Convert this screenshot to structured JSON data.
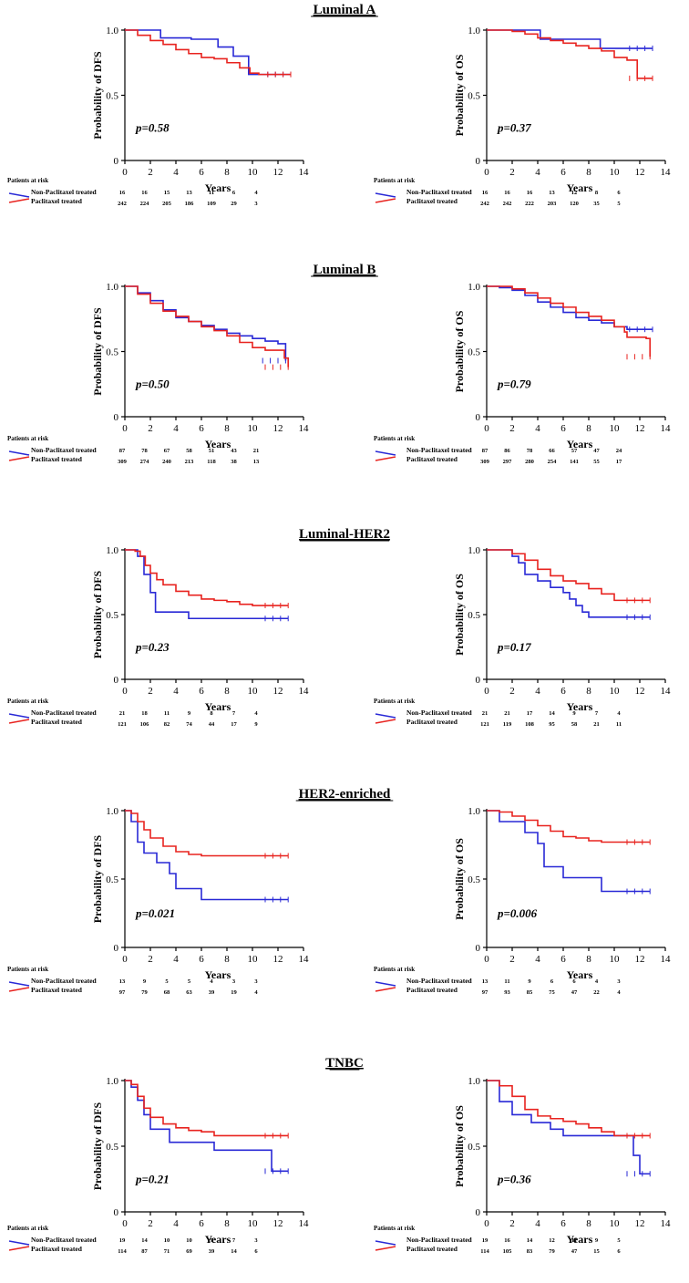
{
  "colors": {
    "non_paclitaxel": "#2929d6",
    "paclitaxel": "#e8231f"
  },
  "legend": {
    "non_paclitaxel": "Non-Paclitaxel treated",
    "paclitaxel": "Paclitaxel treated"
  },
  "risk_header": "Patients at risk",
  "x_label": "Years",
  "chart_data": [
    {
      "section": "Luminal A",
      "type": "line",
      "ylabel": "Probability of DFS",
      "pvalue": "p=0.58",
      "xlim": [
        0,
        14
      ],
      "ylim": [
        0,
        1
      ],
      "xticks": [
        "0",
        "2",
        "4",
        "6",
        "8",
        "10",
        "12",
        "14"
      ],
      "yticks": [
        "0",
        "0.5",
        "1.0"
      ],
      "series": [
        {
          "name": "Non-Paclitaxel treated",
          "x": [
            0,
            2.8,
            2.8,
            5.2,
            7.3,
            7.3,
            8.5,
            8.5,
            9.7,
            9.7,
            13
          ],
          "y": [
            1.0,
            1.0,
            0.94,
            0.93,
            0.93,
            0.87,
            0.87,
            0.8,
            0.8,
            0.66,
            0.66
          ]
        },
        {
          "name": "Paclitaxel treated",
          "x": [
            0,
            1,
            2,
            3,
            4,
            5,
            6,
            7,
            8,
            9,
            9.8,
            10.5,
            13
          ],
          "y": [
            1.0,
            0.96,
            0.92,
            0.89,
            0.85,
            0.82,
            0.79,
            0.78,
            0.75,
            0.71,
            0.67,
            0.66,
            0.66
          ]
        }
      ],
      "at_risk": {
        "non_paclitaxel": [
          "16",
          "16",
          "15",
          "13",
          "11",
          "6",
          "4"
        ],
        "paclitaxel": [
          "242",
          "224",
          "205",
          "186",
          "109",
          "29",
          "3"
        ]
      }
    },
    {
      "section": "Luminal A",
      "type": "line",
      "ylabel": "Probability of OS",
      "pvalue": "p=0.37",
      "xlim": [
        0,
        14
      ],
      "ylim": [
        0,
        1
      ],
      "xticks": [
        "0",
        "2",
        "4",
        "6",
        "8",
        "10",
        "12",
        "14"
      ],
      "yticks": [
        "0",
        "0.5",
        "1.0"
      ],
      "series": [
        {
          "name": "Non-Paclitaxel treated",
          "x": [
            0,
            4.2,
            4.2,
            8.9,
            8.9,
            13
          ],
          "y": [
            1.0,
            1.0,
            0.93,
            0.93,
            0.86,
            0.86
          ]
        },
        {
          "name": "Paclitaxel treated",
          "x": [
            0,
            2,
            3,
            4,
            5,
            6,
            7,
            8,
            9,
            10,
            11,
            11.8,
            11.8,
            13
          ],
          "y": [
            1.0,
            0.99,
            0.97,
            0.94,
            0.92,
            0.9,
            0.88,
            0.86,
            0.84,
            0.79,
            0.77,
            0.77,
            0.63,
            0.63
          ]
        }
      ],
      "at_risk": {
        "non_paclitaxel": [
          "16",
          "16",
          "16",
          "13",
          "12",
          "8",
          "6"
        ],
        "paclitaxel": [
          "242",
          "242",
          "222",
          "203",
          "120",
          "35",
          "5"
        ]
      }
    },
    {
      "section": "Luminal B",
      "type": "line",
      "ylabel": "Probability of DFS",
      "pvalue": "p=0.50",
      "xlim": [
        0,
        14
      ],
      "ylim": [
        0,
        1
      ],
      "xticks": [
        "0",
        "2",
        "4",
        "6",
        "8",
        "10",
        "12",
        "14"
      ],
      "yticks": [
        "0",
        "0.5",
        "1.0"
      ],
      "series": [
        {
          "name": "Non-Paclitaxel treated",
          "x": [
            0,
            1,
            2,
            3,
            4,
            5,
            6,
            7,
            8,
            9,
            10,
            11,
            12,
            12.5,
            12.6
          ],
          "y": [
            1.0,
            0.95,
            0.89,
            0.82,
            0.76,
            0.73,
            0.7,
            0.67,
            0.64,
            0.62,
            0.6,
            0.58,
            0.56,
            0.56,
            0.43
          ]
        },
        {
          "name": "Paclitaxel treated",
          "x": [
            0,
            1,
            2,
            3,
            4,
            5,
            6,
            7,
            8,
            9,
            10,
            11,
            12,
            12.5,
            12.8
          ],
          "y": [
            1.0,
            0.94,
            0.87,
            0.81,
            0.77,
            0.73,
            0.69,
            0.66,
            0.62,
            0.57,
            0.53,
            0.51,
            0.51,
            0.45,
            0.38
          ]
        }
      ],
      "at_risk": {
        "non_paclitaxel": [
          "87",
          "78",
          "67",
          "58",
          "51",
          "43",
          "21"
        ],
        "paclitaxel": [
          "309",
          "274",
          "240",
          "213",
          "118",
          "38",
          "13"
        ]
      }
    },
    {
      "section": "Luminal B",
      "type": "line",
      "ylabel": "Probability of OS",
      "pvalue": "p=0.79",
      "xlim": [
        0,
        14
      ],
      "ylim": [
        0,
        1
      ],
      "xticks": [
        "0",
        "2",
        "4",
        "6",
        "8",
        "10",
        "12",
        "14"
      ],
      "yticks": [
        "0",
        "0.5",
        "1.0"
      ],
      "series": [
        {
          "name": "Non-Paclitaxel treated",
          "x": [
            0,
            1,
            2,
            3,
            4,
            5,
            6,
            7,
            8,
            9,
            10,
            11,
            12,
            13
          ],
          "y": [
            1.0,
            0.99,
            0.97,
            0.93,
            0.88,
            0.84,
            0.8,
            0.76,
            0.74,
            0.72,
            0.69,
            0.67,
            0.67,
            0.67
          ]
        },
        {
          "name": "Paclitaxel treated",
          "x": [
            0,
            1,
            2,
            3,
            4,
            5,
            6,
            7,
            8,
            9,
            10,
            10.8,
            11,
            12.5,
            12.8
          ],
          "y": [
            1.0,
            1.0,
            0.98,
            0.95,
            0.91,
            0.87,
            0.84,
            0.8,
            0.77,
            0.74,
            0.69,
            0.65,
            0.61,
            0.6,
            0.46
          ]
        }
      ],
      "at_risk": {
        "non_paclitaxel": [
          "87",
          "86",
          "78",
          "66",
          "57",
          "47",
          "24"
        ],
        "paclitaxel": [
          "309",
          "297",
          "280",
          "254",
          "141",
          "55",
          "17"
        ]
      }
    },
    {
      "section": "Luminal-HER2",
      "type": "line",
      "ylabel": "Probability of DFS",
      "pvalue": "p=0.23",
      "xlim": [
        0,
        14
      ],
      "ylim": [
        0,
        1
      ],
      "xticks": [
        "0",
        "2",
        "4",
        "6",
        "8",
        "10",
        "12",
        "14"
      ],
      "yticks": [
        "0",
        "0.5",
        "1.0"
      ],
      "series": [
        {
          "name": "Non-Paclitaxel treated",
          "x": [
            0,
            1,
            1,
            1.5,
            1.5,
            2,
            2,
            2.4,
            2.4,
            5,
            5,
            12.8
          ],
          "y": [
            1.0,
            1.0,
            0.95,
            0.95,
            0.81,
            0.81,
            0.67,
            0.67,
            0.52,
            0.52,
            0.47,
            0.47
          ]
        },
        {
          "name": "Paclitaxel treated",
          "x": [
            0,
            0.8,
            1.2,
            1.6,
            2,
            2.5,
            3,
            4,
            5,
            6,
            7,
            8,
            9,
            10,
            12.8
          ],
          "y": [
            1.0,
            0.99,
            0.95,
            0.88,
            0.82,
            0.77,
            0.73,
            0.68,
            0.65,
            0.62,
            0.61,
            0.6,
            0.58,
            0.57,
            0.57
          ]
        }
      ],
      "at_risk": {
        "non_paclitaxel": [
          "21",
          "18",
          "11",
          "9",
          "8",
          "7",
          "4"
        ],
        "paclitaxel": [
          "121",
          "106",
          "82",
          "74",
          "44",
          "17",
          "9"
        ]
      }
    },
    {
      "section": "Luminal-HER2",
      "type": "line",
      "ylabel": "Probability of OS",
      "pvalue": "p=0.17",
      "xlim": [
        0,
        14
      ],
      "ylim": [
        0,
        1
      ],
      "xticks": [
        "0",
        "2",
        "4",
        "6",
        "8",
        "10",
        "12",
        "14"
      ],
      "yticks": [
        "0",
        "0.5",
        "1.0"
      ],
      "series": [
        {
          "name": "Non-Paclitaxel treated",
          "x": [
            0,
            2,
            2,
            2.5,
            2.5,
            3,
            3,
            4,
            4,
            5,
            5,
            6,
            6,
            6.5,
            6.5,
            7,
            7,
            7.5,
            7.5,
            8,
            8,
            9,
            9,
            12.8
          ],
          "y": [
            1.0,
            1.0,
            0.95,
            0.95,
            0.9,
            0.9,
            0.81,
            0.81,
            0.76,
            0.76,
            0.71,
            0.71,
            0.67,
            0.67,
            0.62,
            0.62,
            0.57,
            0.57,
            0.52,
            0.52,
            0.48,
            0.48,
            0.48,
            0.48
          ]
        },
        {
          "name": "Paclitaxel treated",
          "x": [
            0,
            2,
            3,
            4,
            5,
            6,
            7,
            8,
            9,
            10,
            12.8
          ],
          "y": [
            1.0,
            0.97,
            0.92,
            0.85,
            0.8,
            0.76,
            0.74,
            0.7,
            0.66,
            0.61,
            0.61
          ]
        }
      ],
      "at_risk": {
        "non_paclitaxel": [
          "21",
          "21",
          "17",
          "14",
          "9",
          "7",
          "4"
        ],
        "paclitaxel": [
          "121",
          "119",
          "108",
          "95",
          "58",
          "21",
          "11"
        ]
      }
    },
    {
      "section": "HER2-enriched",
      "type": "line",
      "ylabel": "Probability of DFS",
      "pvalue": "p=0.021",
      "xlim": [
        0,
        14
      ],
      "ylim": [
        0,
        1
      ],
      "xticks": [
        "0",
        "2",
        "4",
        "6",
        "8",
        "10",
        "12",
        "14"
      ],
      "yticks": [
        "0",
        "0.5",
        "1.0"
      ],
      "series": [
        {
          "name": "Non-Paclitaxel treated",
          "x": [
            0,
            0.5,
            0.5,
            1,
            1,
            1.5,
            1.5,
            2.5,
            2.5,
            3.5,
            3.5,
            4,
            4,
            6,
            6,
            12.8
          ],
          "y": [
            1.0,
            1.0,
            0.92,
            0.92,
            0.77,
            0.77,
            0.69,
            0.69,
            0.62,
            0.62,
            0.54,
            0.54,
            0.43,
            0.43,
            0.35,
            0.35
          ]
        },
        {
          "name": "Paclitaxel treated",
          "x": [
            0,
            0.5,
            1,
            1.5,
            2,
            3,
            4,
            5,
            6,
            8,
            12.8
          ],
          "y": [
            1.0,
            0.98,
            0.92,
            0.86,
            0.8,
            0.74,
            0.7,
            0.68,
            0.67,
            0.67,
            0.67
          ]
        }
      ],
      "at_risk": {
        "non_paclitaxel": [
          "13",
          "9",
          "5",
          "5",
          "4",
          "3",
          "3"
        ],
        "paclitaxel": [
          "97",
          "79",
          "68",
          "63",
          "39",
          "19",
          "4"
        ]
      }
    },
    {
      "section": "HER2-enriched",
      "type": "line",
      "ylabel": "Probability of OS",
      "pvalue": "p=0.006",
      "xlim": [
        0,
        14
      ],
      "ylim": [
        0,
        1
      ],
      "xticks": [
        "0",
        "2",
        "4",
        "6",
        "8",
        "10",
        "12",
        "14"
      ],
      "yticks": [
        "0",
        "0.5",
        "1.0"
      ],
      "series": [
        {
          "name": "Non-Paclitaxel treated",
          "x": [
            0,
            1,
            1,
            3,
            3,
            4,
            4,
            4.5,
            4.5,
            6,
            6,
            9,
            9,
            12.8
          ],
          "y": [
            1.0,
            1.0,
            0.92,
            0.92,
            0.84,
            0.84,
            0.76,
            0.76,
            0.59,
            0.59,
            0.51,
            0.51,
            0.41,
            0.41
          ]
        },
        {
          "name": "Paclitaxel treated",
          "x": [
            0,
            1,
            2,
            3,
            4,
            5,
            6,
            7,
            8,
            9,
            12.8
          ],
          "y": [
            1.0,
            0.99,
            0.96,
            0.93,
            0.89,
            0.85,
            0.81,
            0.8,
            0.78,
            0.77,
            0.77
          ]
        }
      ],
      "at_risk": {
        "non_paclitaxel": [
          "13",
          "11",
          "9",
          "6",
          "6",
          "4",
          "3"
        ],
        "paclitaxel": [
          "97",
          "93",
          "85",
          "75",
          "47",
          "22",
          "4"
        ]
      }
    },
    {
      "section": "TNBC",
      "type": "line",
      "ylabel": "Probability of DFS",
      "pvalue": "p=0.21",
      "xlim": [
        0,
        14
      ],
      "ylim": [
        0,
        1
      ],
      "xticks": [
        "0",
        "2",
        "4",
        "6",
        "8",
        "10",
        "12",
        "14"
      ],
      "yticks": [
        "0",
        "0.5",
        "1.0"
      ],
      "series": [
        {
          "name": "Non-Paclitaxel treated",
          "x": [
            0,
            0.5,
            0.5,
            1,
            1,
            1.5,
            1.5,
            2,
            2,
            3.5,
            3.5,
            7,
            7,
            11.5,
            11.5,
            12.8
          ],
          "y": [
            1.0,
            1.0,
            0.95,
            0.95,
            0.85,
            0.85,
            0.74,
            0.74,
            0.63,
            0.63,
            0.53,
            0.53,
            0.47,
            0.47,
            0.31,
            0.31
          ]
        },
        {
          "name": "Paclitaxel treated",
          "x": [
            0,
            0.5,
            1,
            1.5,
            2,
            3,
            4,
            5,
            6,
            7,
            12.8
          ],
          "y": [
            1.0,
            0.97,
            0.88,
            0.79,
            0.72,
            0.67,
            0.64,
            0.62,
            0.61,
            0.58,
            0.58
          ]
        }
      ],
      "at_risk": {
        "non_paclitaxel": [
          "19",
          "14",
          "10",
          "10",
          "9",
          "7",
          "3"
        ],
        "paclitaxel": [
          "114",
          "87",
          "71",
          "69",
          "39",
          "14",
          "6"
        ]
      }
    },
    {
      "section": "TNBC",
      "type": "line",
      "ylabel": "Probability of OS",
      "pvalue": "p=0.36",
      "xlim": [
        0,
        14
      ],
      "ylim": [
        0,
        1
      ],
      "xticks": [
        "0",
        "2",
        "4",
        "6",
        "8",
        "10",
        "12",
        "14"
      ],
      "yticks": [
        "0",
        "0.5",
        "1.0"
      ],
      "series": [
        {
          "name": "Non-Paclitaxel treated",
          "x": [
            0,
            1,
            1,
            2,
            2,
            3.5,
            3.5,
            5,
            5,
            6,
            6,
            11.5,
            11.5,
            12,
            12,
            12.8
          ],
          "y": [
            1.0,
            1.0,
            0.84,
            0.84,
            0.74,
            0.74,
            0.68,
            0.68,
            0.63,
            0.63,
            0.58,
            0.58,
            0.43,
            0.43,
            0.29,
            0.29
          ]
        },
        {
          "name": "Paclitaxel treated",
          "x": [
            0,
            1,
            2,
            3,
            4,
            5,
            6,
            7,
            8,
            9,
            10,
            12.8
          ],
          "y": [
            1.0,
            0.96,
            0.88,
            0.78,
            0.73,
            0.71,
            0.69,
            0.67,
            0.64,
            0.61,
            0.58,
            0.58
          ]
        }
      ],
      "at_risk": {
        "non_paclitaxel": [
          "19",
          "16",
          "14",
          "12",
          "11",
          "9",
          "5"
        ],
        "paclitaxel": [
          "114",
          "105",
          "83",
          "79",
          "47",
          "15",
          "6"
        ]
      }
    }
  ]
}
